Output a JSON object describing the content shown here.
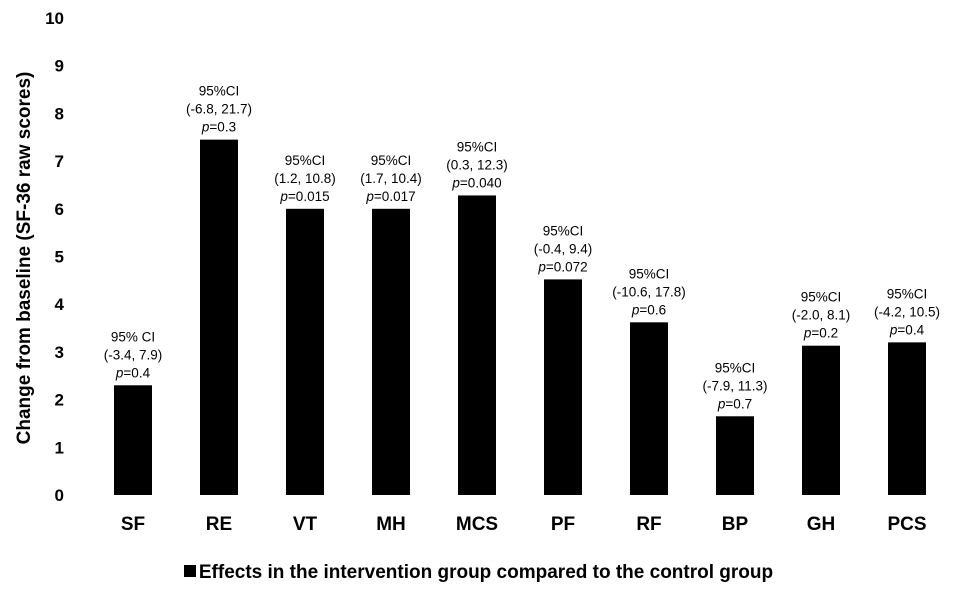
{
  "chart_data": {
    "type": "bar",
    "ylabel": "Change from baseline  (SF-36 raw scores)",
    "ylim": [
      0,
      10
    ],
    "yticks": [
      0,
      1,
      2,
      3,
      4,
      5,
      6,
      7,
      8,
      9,
      10
    ],
    "grid": false,
    "legend_position": "bottom",
    "categories": [
      "SF",
      "RE",
      "VT",
      "MH",
      "MCS",
      "PF",
      "RF",
      "BP",
      "GH",
      "PCS"
    ],
    "series": [
      {
        "name": "Effects in the intervention group compared to the control group",
        "color": "#000000",
        "values": [
          2.3,
          7.45,
          6.0,
          6.0,
          6.28,
          4.52,
          3.62,
          1.65,
          3.13,
          3.2
        ]
      }
    ],
    "annotations": [
      {
        "category": "SF",
        "ci_label": "95% CI",
        "ci": "(-3.4, 7.9)",
        "p_prefix": "p",
        "p_value": "=0.4"
      },
      {
        "category": "RE",
        "ci_label": "95%CI",
        "ci": "(-6.8, 21.7)",
        "p_prefix": "p",
        "p_value": "=0.3"
      },
      {
        "category": "VT",
        "ci_label": "95%CI",
        "ci": "(1.2, 10.8)",
        "p_prefix": "p",
        "p_value": "=0.015"
      },
      {
        "category": "MH",
        "ci_label": "95%CI",
        "ci": "(1.7, 10.4)",
        "p_prefix": "p",
        "p_value": "=0.017"
      },
      {
        "category": "MCS",
        "ci_label": "95%CI",
        "ci": "(0.3, 12.3)",
        "p_prefix": "p",
        "p_value": "=0.040"
      },
      {
        "category": "PF",
        "ci_label": "95%CI",
        "ci": "(-0.4, 9.4)",
        "p_prefix": "p",
        "p_value": "=0.072"
      },
      {
        "category": "RF",
        "ci_label": "95%CI",
        "ci": "(-10.6, 17.8)",
        "p_prefix": "p",
        "p_value": "=0.6"
      },
      {
        "category": "BP",
        "ci_label": "95%CI",
        "ci": "(-7.9, 11.3)",
        "p_prefix": "p",
        "p_value": "=0.7"
      },
      {
        "category": "GH",
        "ci_label": "95%CI",
        "ci": "(-2.0, 8.1)",
        "p_prefix": "p",
        "p_value": "=0.2"
      },
      {
        "category": "PCS",
        "ci_label": "95%CI",
        "ci": "(-4.2, 10.5)",
        "p_prefix": "p",
        "p_value": "=0.4"
      }
    ]
  }
}
